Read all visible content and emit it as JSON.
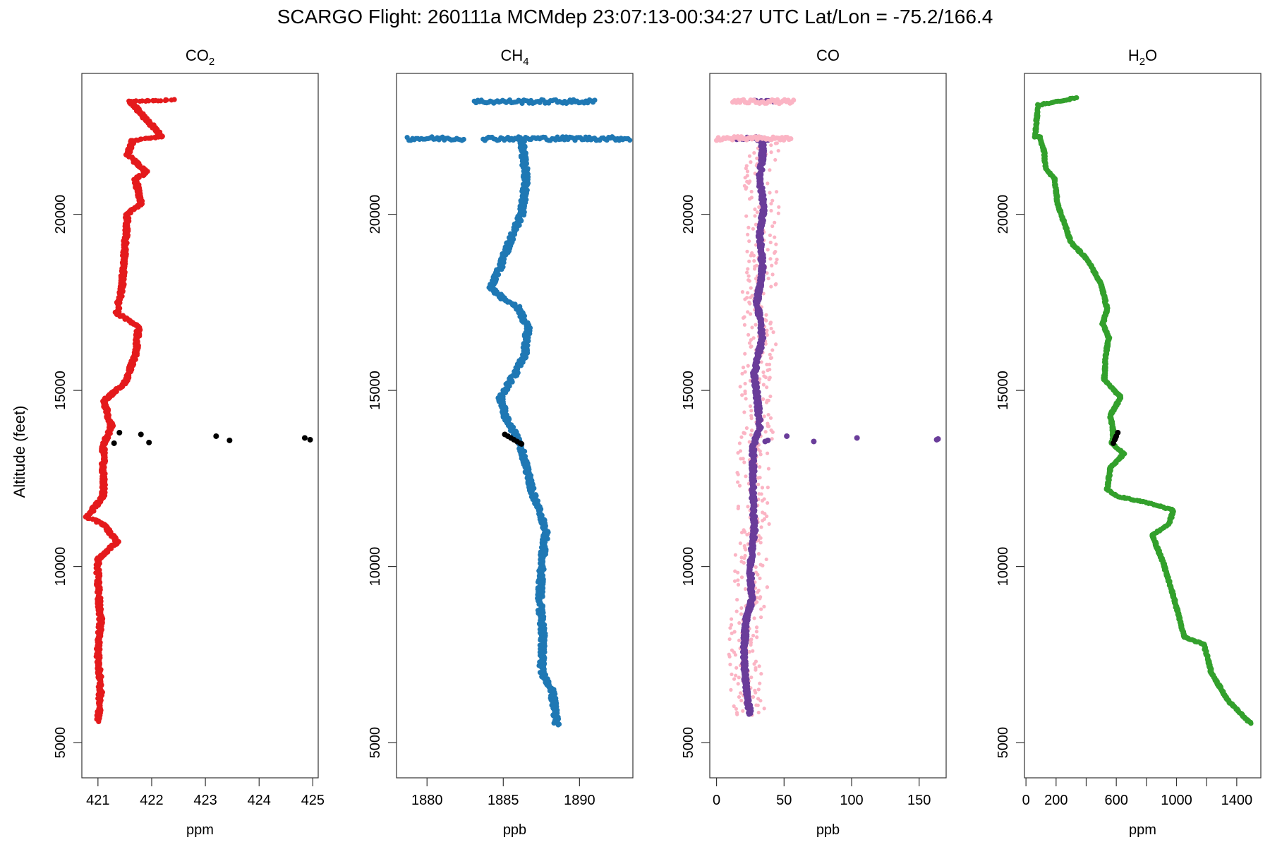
{
  "title": "SCARGO Flight: 260111a  MCMdep  23:07:13-00:34:27 UTC  Lat/Lon = -75.2/166.4",
  "ylabel": "Altitude (feet)",
  "chart_data": [
    {
      "type": "scatter",
      "title": "CO",
      "title_sub": "2",
      "xlabel": "ppm",
      "xlim": [
        420.7,
        425.1
      ],
      "ylim": [
        4000,
        24000
      ],
      "xticks": [
        421,
        422,
        423,
        424,
        425
      ],
      "xticklabels": [
        "421",
        "422",
        "423",
        "424",
        "425"
      ],
      "yticks": [
        5000,
        10000,
        15000,
        20000
      ],
      "yticklabels": [
        "5000",
        "10000",
        "15000",
        "20000"
      ],
      "grid": false,
      "series": [
        {
          "color": "#e41a1c",
          "profile": [
            [
              5600,
              421.0
            ],
            [
              6500,
              421.05
            ],
            [
              7500,
              421.0
            ],
            [
              8500,
              421.05
            ],
            [
              9500,
              421.0
            ],
            [
              10200,
              421.0
            ],
            [
              10700,
              421.35
            ],
            [
              11200,
              421.1
            ],
            [
              11400,
              420.8
            ],
            [
              12000,
              421.1
            ],
            [
              13000,
              421.1
            ],
            [
              13400,
              421.1
            ],
            [
              14000,
              421.25
            ],
            [
              14700,
              421.1
            ],
            [
              15200,
              421.5
            ],
            [
              16000,
              421.7
            ],
            [
              16800,
              421.75
            ],
            [
              17200,
              421.35
            ],
            [
              18000,
              421.45
            ],
            [
              19000,
              421.5
            ],
            [
              20000,
              421.55
            ],
            [
              20300,
              421.8
            ],
            [
              21000,
              421.7
            ],
            [
              21200,
              421.9
            ],
            [
              21700,
              421.55
            ],
            [
              22100,
              421.65
            ],
            [
              22200,
              422.2
            ],
            [
              23200,
              421.6
            ],
            [
              23250,
              422.4
            ]
          ],
          "spread": 0.04
        },
        {
          "color": "#000000",
          "points": [
            [
              421.3,
              13500
            ],
            [
              421.4,
              13800
            ],
            [
              421.8,
              13750
            ],
            [
              421.95,
              13520
            ],
            [
              423.2,
              13700
            ],
            [
              423.45,
              13580
            ],
            [
              424.85,
              13650
            ],
            [
              424.95,
              13600
            ]
          ]
        }
      ]
    },
    {
      "type": "scatter",
      "title": "CH",
      "title_sub": "4",
      "xlabel": "ppb",
      "xlim": [
        1878,
        1893.5
      ],
      "ylim": [
        4000,
        24000
      ],
      "xticks": [
        1880,
        1885,
        1890
      ],
      "xticklabels": [
        "1880",
        "1885",
        "1890"
      ],
      "yticks": [
        5000,
        10000,
        15000,
        20000
      ],
      "yticklabels": [
        "5000",
        "10000",
        "15000",
        "20000"
      ],
      "grid": false,
      "series": [
        {
          "color": "#1f78b4",
          "profile": [
            [
              5500,
              1888.5
            ],
            [
              6500,
              1888.2
            ],
            [
              7000,
              1887.5
            ],
            [
              8000,
              1887.6
            ],
            [
              9000,
              1887.4
            ],
            [
              10000,
              1887.5
            ],
            [
              11000,
              1887.8
            ],
            [
              12000,
              1887.0
            ],
            [
              13000,
              1886.4
            ],
            [
              13500,
              1886.1
            ],
            [
              14200,
              1885.2
            ],
            [
              14800,
              1884.8
            ],
            [
              15500,
              1885.8
            ],
            [
              16000,
              1886.4
            ],
            [
              16800,
              1886.6
            ],
            [
              17400,
              1885.9
            ],
            [
              17600,
              1885.0
            ],
            [
              17900,
              1884.2
            ],
            [
              18500,
              1884.8
            ],
            [
              19200,
              1885.4
            ],
            [
              20000,
              1886.2
            ],
            [
              21000,
              1886.5
            ],
            [
              21800,
              1886.3
            ],
            [
              22100,
              1886.2
            ]
          ],
          "spread": 0.18
        },
        {
          "color": "#1f78b4",
          "band_y": 22150,
          "band_x": [
            1878.7,
            1893.3
          ],
          "band_gap": [
            1882.5,
            1883.6
          ]
        },
        {
          "color": "#1f78b4",
          "band_y": 23200,
          "band_x": [
            1883.1,
            1891.0
          ]
        },
        {
          "color": "#000000",
          "points": [
            [
              1885.1,
              13750
            ],
            [
              1885.3,
              13700
            ],
            [
              1885.5,
              13650
            ],
            [
              1885.7,
              13600
            ],
            [
              1885.9,
              13550
            ],
            [
              1886.1,
              13500
            ],
            [
              1886.2,
              13480
            ]
          ]
        }
      ]
    },
    {
      "type": "scatter",
      "title": "CO",
      "title_sub": "",
      "xlabel": "ppb",
      "xlim": [
        -5,
        170
      ],
      "ylim": [
        4000,
        24000
      ],
      "xticks": [
        0,
        50,
        100,
        150
      ],
      "xticklabels": [
        "0",
        "50",
        "100",
        "150"
      ],
      "yticks": [
        5000,
        10000,
        15000,
        20000
      ],
      "yticklabels": [
        "5000",
        "10000",
        "15000",
        "20000"
      ],
      "grid": false,
      "series": [
        {
          "color": "#fbb4c4",
          "scatter_around": "profile-co",
          "spread": 12
        },
        {
          "color": "#6a3d9a",
          "id": "profile-co",
          "profile": [
            [
              5800,
              25
            ],
            [
              6500,
              22
            ],
            [
              7500,
              20
            ],
            [
              8500,
              22
            ],
            [
              9000,
              26
            ],
            [
              10000,
              25
            ],
            [
              11000,
              28
            ],
            [
              12000,
              27
            ],
            [
              13400,
              27
            ],
            [
              13900,
              32
            ],
            [
              14500,
              31
            ],
            [
              15500,
              28
            ],
            [
              16500,
              34
            ],
            [
              17500,
              30
            ],
            [
              18500,
              34
            ],
            [
              19500,
              32
            ],
            [
              20200,
              35
            ],
            [
              21000,
              32
            ],
            [
              21700,
              34
            ],
            [
              22150,
              34
            ]
          ],
          "spread": 1.5
        },
        {
          "color": "#6a3d9a",
          "band_y": 22150,
          "band_x": [
            15,
            38
          ]
        },
        {
          "color": "#6a3d9a",
          "band_y": 23200,
          "band_x": [
            28,
            42
          ]
        },
        {
          "color": "#fbb4c4",
          "band_y": 22150,
          "band_x": [
            0,
            55
          ]
        },
        {
          "color": "#fbb4c4",
          "band_y": 23200,
          "band_x": [
            12,
            57
          ]
        },
        {
          "color": "#6a3d9a",
          "points": [
            [
              36,
              13550
            ],
            [
              38,
              13580
            ],
            [
              52,
              13700
            ],
            [
              72,
              13550
            ],
            [
              104,
              13650
            ],
            [
              163,
              13600
            ],
            [
              164,
              13620
            ]
          ]
        }
      ]
    },
    {
      "type": "scatter",
      "title": "H",
      "title_sub": "2",
      "title_suffix": "O",
      "xlabel": "ppm",
      "xlim": [
        -10,
        1560
      ],
      "ylim": [
        4000,
        24000
      ],
      "xticks": [
        0,
        200,
        400,
        600,
        800,
        1000,
        1200,
        1400
      ],
      "xticklabels": [
        "0",
        "200",
        "",
        "600",
        "",
        "1000",
        "",
        "1400"
      ],
      "yticks": [
        5000,
        10000,
        15000,
        20000
      ],
      "yticklabels": [
        "5000",
        "10000",
        "15000",
        "20000"
      ],
      "grid": false,
      "series": [
        {
          "color": "#33a02c",
          "profile": [
            [
              5550,
              1490
            ],
            [
              6200,
              1340
            ],
            [
              7000,
              1230
            ],
            [
              7200,
              1220
            ],
            [
              7800,
              1180
            ],
            [
              8000,
              1050
            ],
            [
              9000,
              990
            ],
            [
              10000,
              920
            ],
            [
              10900,
              840
            ],
            [
              11200,
              950
            ],
            [
              11600,
              980
            ],
            [
              11800,
              820
            ],
            [
              12000,
              600
            ],
            [
              12200,
              540
            ],
            [
              12800,
              560
            ],
            [
              13200,
              650
            ],
            [
              13500,
              570
            ],
            [
              13800,
              580
            ],
            [
              14300,
              560
            ],
            [
              14800,
              630
            ],
            [
              15300,
              520
            ],
            [
              16000,
              530
            ],
            [
              16500,
              550
            ],
            [
              16900,
              510
            ],
            [
              17300,
              540
            ],
            [
              18000,
              500
            ],
            [
              18700,
              410
            ],
            [
              19200,
              300
            ],
            [
              19800,
              250
            ],
            [
              20300,
              210
            ],
            [
              21000,
              190
            ],
            [
              21300,
              130
            ],
            [
              21800,
              120
            ],
            [
              22200,
              90
            ],
            [
              22200,
              60
            ],
            [
              23100,
              80
            ],
            [
              23300,
              330
            ]
          ],
          "spread": 6
        },
        {
          "color": "#000000",
          "points": [
            [
              580,
              13500
            ],
            [
              590,
              13600
            ],
            [
              600,
              13700
            ],
            [
              610,
              13800
            ],
            [
              595,
              13650
            ]
          ]
        }
      ]
    }
  ]
}
